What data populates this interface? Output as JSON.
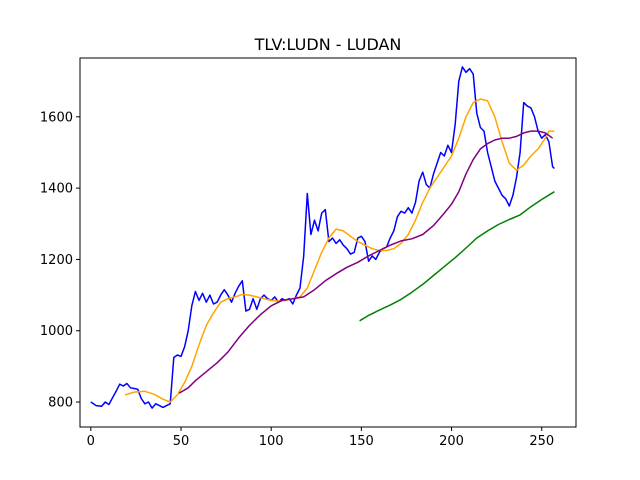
{
  "chart_data": {
    "type": "line",
    "title": "TLV:LUDN - LUDAN",
    "xlabel": "",
    "ylabel": "",
    "xlim": [
      -6,
      269
    ],
    "ylim": [
      730,
      1765
    ],
    "x_ticks": [
      0,
      50,
      100,
      150,
      200,
      250
    ],
    "y_ticks": [
      800,
      1000,
      1200,
      1400,
      1600
    ],
    "grid": false,
    "legend": "none",
    "series": [
      {
        "color": "#0000ff",
        "points": [
          [
            0,
            800
          ],
          [
            3,
            790
          ],
          [
            6,
            788
          ],
          [
            8,
            800
          ],
          [
            10,
            793
          ],
          [
            12,
            812
          ],
          [
            14,
            830
          ],
          [
            16,
            850
          ],
          [
            18,
            845
          ],
          [
            20,
            852
          ],
          [
            22,
            840
          ],
          [
            24,
            838
          ],
          [
            26,
            836
          ],
          [
            28,
            810
          ],
          [
            30,
            795
          ],
          [
            32,
            800
          ],
          [
            34,
            783
          ],
          [
            36,
            795
          ],
          [
            38,
            790
          ],
          [
            40,
            785
          ],
          [
            42,
            790
          ],
          [
            44,
            795
          ],
          [
            46,
            925
          ],
          [
            48,
            932
          ],
          [
            50,
            928
          ],
          [
            52,
            955
          ],
          [
            54,
            1000
          ],
          [
            56,
            1070
          ],
          [
            58,
            1110
          ],
          [
            60,
            1085
          ],
          [
            62,
            1105
          ],
          [
            64,
            1080
          ],
          [
            66,
            1100
          ],
          [
            68,
            1075
          ],
          [
            70,
            1080
          ],
          [
            72,
            1100
          ],
          [
            74,
            1115
          ],
          [
            76,
            1100
          ],
          [
            78,
            1080
          ],
          [
            80,
            1105
          ],
          [
            82,
            1125
          ],
          [
            84,
            1140
          ],
          [
            86,
            1055
          ],
          [
            88,
            1060
          ],
          [
            90,
            1090
          ],
          [
            92,
            1060
          ],
          [
            94,
            1090
          ],
          [
            96,
            1100
          ],
          [
            98,
            1090
          ],
          [
            100,
            1085
          ],
          [
            102,
            1095
          ],
          [
            104,
            1080
          ],
          [
            106,
            1090
          ],
          [
            108,
            1085
          ],
          [
            110,
            1090
          ],
          [
            112,
            1075
          ],
          [
            114,
            1100
          ],
          [
            116,
            1120
          ],
          [
            118,
            1210
          ],
          [
            120,
            1385
          ],
          [
            122,
            1270
          ],
          [
            124,
            1310
          ],
          [
            126,
            1280
          ],
          [
            128,
            1330
          ],
          [
            130,
            1340
          ],
          [
            132,
            1250
          ],
          [
            134,
            1260
          ],
          [
            136,
            1245
          ],
          [
            138,
            1255
          ],
          [
            140,
            1240
          ],
          [
            142,
            1230
          ],
          [
            144,
            1215
          ],
          [
            146,
            1220
          ],
          [
            148,
            1260
          ],
          [
            150,
            1265
          ],
          [
            152,
            1250
          ],
          [
            154,
            1195
          ],
          [
            156,
            1210
          ],
          [
            158,
            1200
          ],
          [
            160,
            1220
          ],
          [
            162,
            1230
          ],
          [
            164,
            1235
          ],
          [
            166,
            1260
          ],
          [
            168,
            1280
          ],
          [
            170,
            1320
          ],
          [
            172,
            1335
          ],
          [
            174,
            1330
          ],
          [
            176,
            1345
          ],
          [
            178,
            1330
          ],
          [
            180,
            1360
          ],
          [
            182,
            1420
          ],
          [
            184,
            1445
          ],
          [
            186,
            1410
          ],
          [
            188,
            1400
          ],
          [
            190,
            1440
          ],
          [
            192,
            1470
          ],
          [
            194,
            1500
          ],
          [
            196,
            1490
          ],
          [
            198,
            1520
          ],
          [
            200,
            1500
          ],
          [
            202,
            1580
          ],
          [
            204,
            1700
          ],
          [
            206,
            1740
          ],
          [
            208,
            1725
          ],
          [
            210,
            1735
          ],
          [
            212,
            1720
          ],
          [
            214,
            1610
          ],
          [
            216,
            1570
          ],
          [
            218,
            1560
          ],
          [
            220,
            1500
          ],
          [
            222,
            1460
          ],
          [
            224,
            1420
          ],
          [
            226,
            1400
          ],
          [
            228,
            1380
          ],
          [
            230,
            1370
          ],
          [
            232,
            1350
          ],
          [
            234,
            1380
          ],
          [
            236,
            1430
          ],
          [
            238,
            1500
          ],
          [
            240,
            1640
          ],
          [
            242,
            1630
          ],
          [
            244,
            1625
          ],
          [
            246,
            1600
          ],
          [
            248,
            1560
          ],
          [
            250,
            1540
          ],
          [
            252,
            1550
          ],
          [
            254,
            1530
          ],
          [
            256,
            1460
          ],
          [
            257,
            1455
          ]
        ]
      },
      {
        "color": "#ffa500",
        "points": [
          [
            19,
            820
          ],
          [
            24,
            828
          ],
          [
            30,
            830
          ],
          [
            35,
            822
          ],
          [
            40,
            808
          ],
          [
            44,
            800
          ],
          [
            48,
            820
          ],
          [
            52,
            855
          ],
          [
            56,
            900
          ],
          [
            60,
            960
          ],
          [
            64,
            1015
          ],
          [
            68,
            1050
          ],
          [
            72,
            1080
          ],
          [
            76,
            1090
          ],
          [
            80,
            1095
          ],
          [
            84,
            1102
          ],
          [
            88,
            1100
          ],
          [
            92,
            1095
          ],
          [
            96,
            1090
          ],
          [
            100,
            1085
          ],
          [
            104,
            1083
          ],
          [
            108,
            1085
          ],
          [
            112,
            1090
          ],
          [
            116,
            1095
          ],
          [
            120,
            1120
          ],
          [
            124,
            1170
          ],
          [
            128,
            1220
          ],
          [
            132,
            1260
          ],
          [
            136,
            1285
          ],
          [
            140,
            1280
          ],
          [
            144,
            1265
          ],
          [
            148,
            1250
          ],
          [
            152,
            1240
          ],
          [
            156,
            1230
          ],
          [
            160,
            1225
          ],
          [
            164,
            1225
          ],
          [
            168,
            1230
          ],
          [
            172,
            1245
          ],
          [
            176,
            1270
          ],
          [
            180,
            1310
          ],
          [
            184,
            1360
          ],
          [
            188,
            1400
          ],
          [
            192,
            1430
          ],
          [
            196,
            1460
          ],
          [
            200,
            1490
          ],
          [
            204,
            1540
          ],
          [
            208,
            1600
          ],
          [
            212,
            1640
          ],
          [
            216,
            1650
          ],
          [
            220,
            1645
          ],
          [
            224,
            1600
          ],
          [
            228,
            1530
          ],
          [
            232,
            1470
          ],
          [
            236,
            1450
          ],
          [
            240,
            1465
          ],
          [
            244,
            1490
          ],
          [
            248,
            1510
          ],
          [
            252,
            1540
          ],
          [
            254,
            1560
          ],
          [
            257,
            1560
          ]
        ]
      },
      {
        "color": "#800080",
        "points": [
          [
            49,
            825
          ],
          [
            54,
            840
          ],
          [
            58,
            860
          ],
          [
            64,
            885
          ],
          [
            70,
            910
          ],
          [
            76,
            940
          ],
          [
            82,
            980
          ],
          [
            88,
            1015
          ],
          [
            94,
            1045
          ],
          [
            100,
            1070
          ],
          [
            106,
            1085
          ],
          [
            112,
            1090
          ],
          [
            118,
            1095
          ],
          [
            124,
            1115
          ],
          [
            130,
            1140
          ],
          [
            136,
            1160
          ],
          [
            142,
            1178
          ],
          [
            148,
            1192
          ],
          [
            154,
            1210
          ],
          [
            160,
            1225
          ],
          [
            166,
            1240
          ],
          [
            172,
            1252
          ],
          [
            178,
            1258
          ],
          [
            184,
            1270
          ],
          [
            190,
            1295
          ],
          [
            196,
            1330
          ],
          [
            200,
            1355
          ],
          [
            204,
            1390
          ],
          [
            208,
            1440
          ],
          [
            212,
            1480
          ],
          [
            216,
            1510
          ],
          [
            220,
            1525
          ],
          [
            224,
            1535
          ],
          [
            228,
            1540
          ],
          [
            232,
            1540
          ],
          [
            236,
            1545
          ],
          [
            240,
            1555
          ],
          [
            244,
            1560
          ],
          [
            248,
            1560
          ],
          [
            252,
            1555
          ],
          [
            256,
            1540
          ]
        ]
      },
      {
        "color": "#008000",
        "points": [
          [
            149,
            1028
          ],
          [
            154,
            1043
          ],
          [
            160,
            1058
          ],
          [
            166,
            1072
          ],
          [
            172,
            1088
          ],
          [
            178,
            1108
          ],
          [
            184,
            1130
          ],
          [
            190,
            1155
          ],
          [
            196,
            1180
          ],
          [
            202,
            1205
          ],
          [
            208,
            1232
          ],
          [
            214,
            1260
          ],
          [
            220,
            1280
          ],
          [
            226,
            1298
          ],
          [
            232,
            1312
          ],
          [
            238,
            1325
          ],
          [
            244,
            1348
          ],
          [
            250,
            1368
          ],
          [
            257,
            1390
          ]
        ]
      }
    ]
  }
}
